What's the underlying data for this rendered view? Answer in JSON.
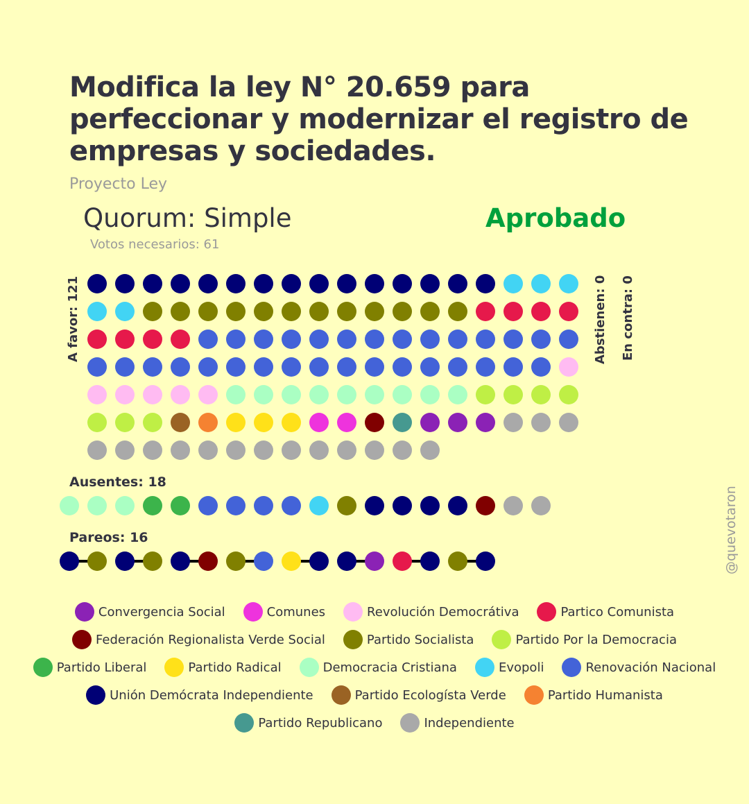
{
  "title": "Modifica la ley N° 20.659 para perfeccionar y modernizar el registro de empresas y sociedades.",
  "subtitle": "Proyecto Ley",
  "quorum": "Quorum: Simple",
  "status": "Aprobado",
  "status_color": "#00a03c",
  "votes_needed": "Votos necesarios: 61",
  "labels": {
    "favor": "A favor: 121",
    "abstienen": "Abstienen: 0",
    "contra": "En contra: 0",
    "ausentes": "Ausentes: 18",
    "pareos": "Pareos: 16"
  },
  "watermark": "@quevotaron",
  "colors": {
    "CS": "#8b22b5",
    "COM": "#ee33dd",
    "RD": "#ffbbf2",
    "PC": "#e6194b",
    "FRVS": "#800000",
    "PS": "#808000",
    "PPD": "#bfef45",
    "PL": "#3cb44b",
    "PR": "#ffe119",
    "DC": "#aaffc3",
    "EVO": "#42d4f4",
    "RN": "#4363d8",
    "UDI": "#000075",
    "PEV": "#9a6324",
    "PH": "#f58231",
    "REP": "#469990",
    "IND": "#a9a9a9"
  },
  "legend": [
    [
      {
        "key": "CS",
        "label": "Convergencia Social"
      },
      {
        "key": "COM",
        "label": "Comunes"
      },
      {
        "key": "RD",
        "label": "Revolución Democrátiva"
      },
      {
        "key": "PC",
        "label": "Partico Comunista"
      }
    ],
    [
      {
        "key": "FRVS",
        "label": "Federación Regionalista Verde Social"
      },
      {
        "key": "PS",
        "label": "Partido Socialista"
      },
      {
        "key": "PPD",
        "label": "Partido Por la Democracia"
      }
    ],
    [
      {
        "key": "PL",
        "label": "Partido Liberal"
      },
      {
        "key": "PR",
        "label": "Partido Radical"
      },
      {
        "key": "DC",
        "label": "Democracia Cristiana"
      },
      {
        "key": "EVO",
        "label": "Evopoli"
      },
      {
        "key": "RN",
        "label": "Renovación Nacional"
      }
    ],
    [
      {
        "key": "UDI",
        "label": "Unión Demócrata Independiente"
      },
      {
        "key": "PEV",
        "label": "Partido Ecologísta Verde"
      },
      {
        "key": "PH",
        "label": "Partido Humanista"
      }
    ],
    [
      {
        "key": "REP",
        "label": "Partido Republicano"
      },
      {
        "key": "IND",
        "label": "Independiente"
      }
    ]
  ],
  "chart_data": {
    "type": "dot-matrix",
    "a_favor": {
      "total": 121,
      "per_row": 18,
      "counts": [
        {
          "party": "UDI",
          "count": 15
        },
        {
          "party": "EVO",
          "count": 5
        },
        {
          "party": "PS",
          "count": 12
        },
        {
          "party": "PC",
          "count": 8
        },
        {
          "party": "RN",
          "count": 31
        },
        {
          "party": "RD",
          "count": 6
        },
        {
          "party": "DC",
          "count": 9
        },
        {
          "party": "PPD",
          "count": 7
        },
        {
          "party": "PEV",
          "count": 1
        },
        {
          "party": "PH",
          "count": 1
        },
        {
          "party": "PR",
          "count": 3
        },
        {
          "party": "COM",
          "count": 2
        },
        {
          "party": "FRVS",
          "count": 1
        },
        {
          "party": "REP",
          "count": 1
        },
        {
          "party": "CS",
          "count": 3
        },
        {
          "party": "IND",
          "count": 16
        }
      ]
    },
    "abstienen": {
      "total": 0
    },
    "en_contra": {
      "total": 0
    },
    "ausentes": {
      "total": 18,
      "seq": [
        "DC",
        "DC",
        "DC",
        "PL",
        "PL",
        "RN",
        "RN",
        "RN",
        "RN",
        "EVO",
        "PS",
        "UDI",
        "UDI",
        "UDI",
        "UDI",
        "FRVS",
        "IND",
        "IND"
      ]
    },
    "pareos": {
      "total": 16,
      "pairs": [
        [
          "UDI",
          "PS"
        ],
        [
          "UDI",
          "PS"
        ],
        [
          "UDI",
          "FRVS"
        ],
        [
          "PS",
          "RN"
        ],
        [
          "PR",
          "UDI"
        ],
        [
          "UDI",
          "CS"
        ],
        [
          "PC",
          "UDI"
        ],
        [
          "PS",
          "UDI"
        ]
      ]
    }
  }
}
